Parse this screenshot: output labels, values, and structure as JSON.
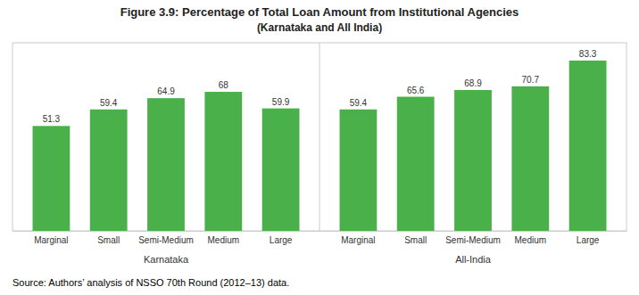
{
  "chart_data": {
    "type": "bar",
    "title": "Figure 3.9: Percentage of Total Loan Amount from Institutional Agencies",
    "subtitle": "(Karnataka and All India)",
    "categories": [
      "Marginal",
      "Small",
      "Semi-Medium",
      "Medium",
      "Large"
    ],
    "series": [
      {
        "name": "Karnataka",
        "values": [
          51.3,
          59.4,
          64.9,
          68,
          59.9
        ]
      },
      {
        "name": "All-India",
        "values": [
          59.4,
          65.6,
          68.9,
          70.7,
          83.3
        ]
      }
    ],
    "color": "#4ab04a",
    "ylim": [
      0,
      92
    ],
    "data_labels": true,
    "tick_labels": "x",
    "annotations": [
      "Source: Authors’ analysis of NSSO 70th Round (2012–13) data."
    ]
  }
}
